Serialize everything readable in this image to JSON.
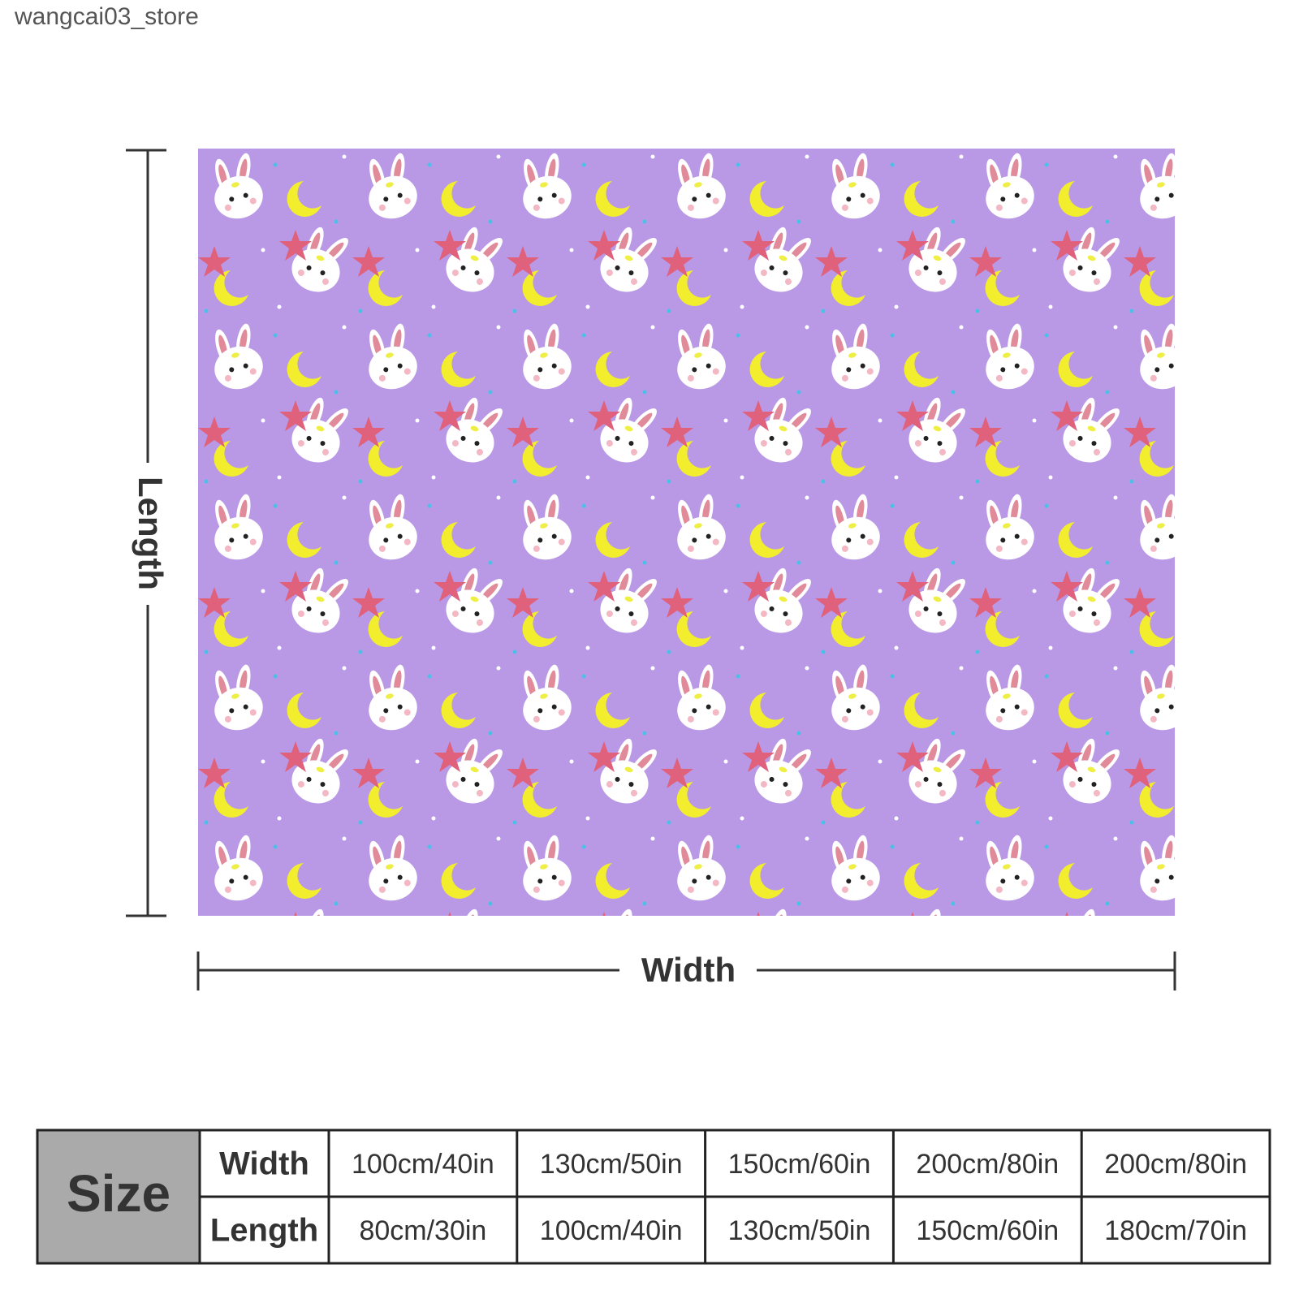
{
  "watermark": "wangcai03_store",
  "diagram": {
    "length_label": "Length",
    "width_label": "Width"
  },
  "table": {
    "corner": "Size",
    "rows": [
      [
        "Width",
        "100cm/40in",
        "130cm/50in",
        "150cm/60in",
        "200cm/80in",
        "200cm/80in"
      ],
      [
        "Length",
        "80cm/30in",
        "100cm/40in",
        "130cm/50in",
        "150cm/60in",
        "180cm/70in"
      ]
    ]
  }
}
